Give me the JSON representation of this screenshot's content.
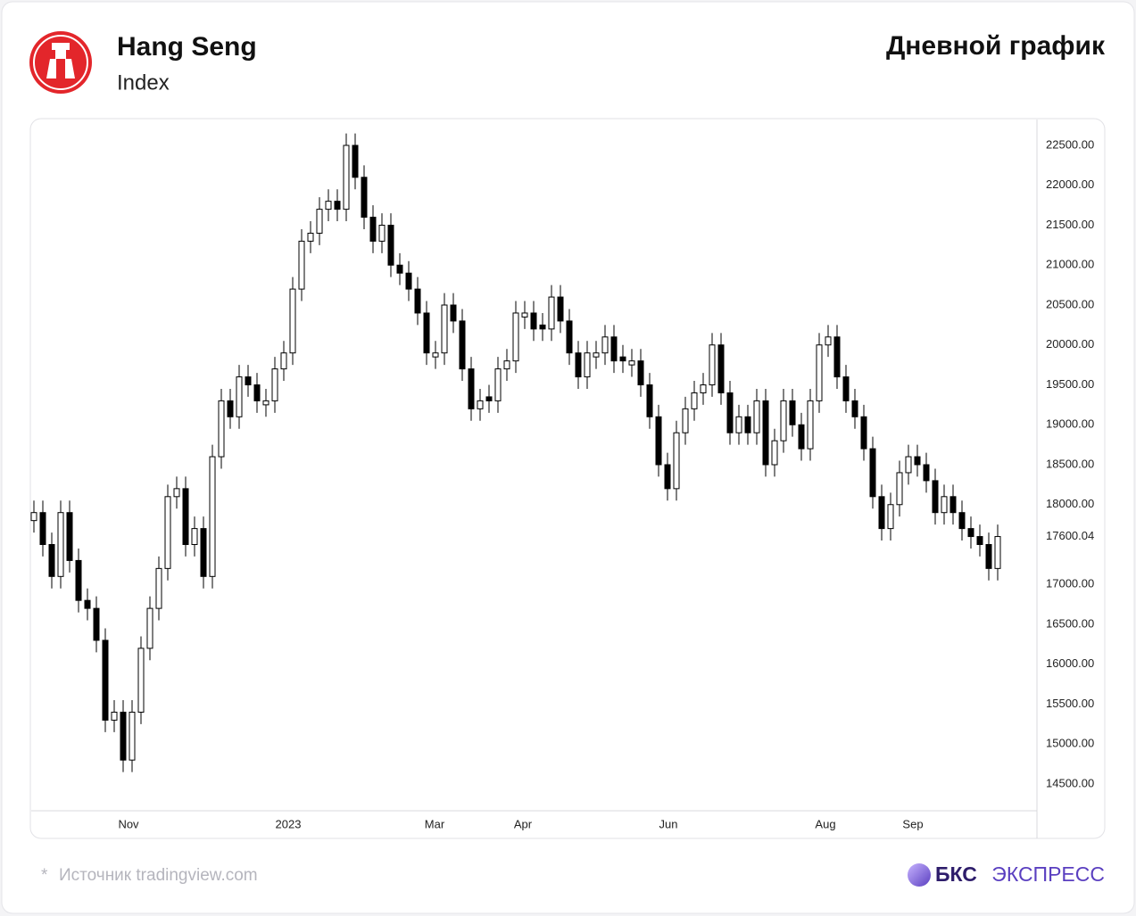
{
  "chart_data": {
    "type": "candlestick",
    "title": "Hang Seng",
    "subtitle": "Index",
    "open": [
      17800,
      17900,
      17500,
      17100,
      17900,
      17300,
      16800,
      16700,
      16300,
      15300,
      15400,
      14800,
      15400,
      16200,
      16700,
      17200,
      18100,
      18200,
      17500,
      17700,
      17100,
      18600,
      19300,
      19100,
      19600,
      19500,
      19250,
      19300,
      19700,
      19900,
      20700,
      21300,
      21400,
      21700,
      21800,
      21700,
      22500,
      22100,
      21600,
      21300,
      21500,
      21000,
      20900,
      20700,
      20400,
      19850,
      19900,
      20500,
      20300,
      19700,
      19200,
      19350,
      19300,
      19700,
      19800,
      20350,
      20400,
      20250,
      20200,
      20600,
      20300,
      19900,
      19600,
      19850,
      19900,
      20100,
      19850,
      19750,
      19800,
      19500,
      19100,
      18500,
      18200,
      18900,
      19200,
      19400,
      19500,
      20000,
      19400,
      18900,
      19100,
      18900,
      19300,
      18500,
      18800,
      19300,
      19000,
      18700,
      19300,
      20000,
      20100,
      19600,
      19300,
      19100,
      18700,
      18100,
      17700,
      18000,
      18400,
      18600,
      18500,
      18300,
      17900,
      18100,
      17900,
      17700,
      17600,
      17500,
      17200
    ],
    "high": [
      18050,
      18050,
      17650,
      18050,
      18050,
      17450,
      16950,
      16850,
      16450,
      15550,
      15550,
      15550,
      16350,
      16850,
      17350,
      18250,
      18350,
      18350,
      17850,
      17850,
      18750,
      19450,
      19450,
      19750,
      19750,
      19650,
      19450,
      19850,
      20050,
      20850,
      21450,
      21550,
      21850,
      21950,
      21950,
      22650,
      22650,
      22250,
      21750,
      21650,
      21650,
      21150,
      21050,
      20850,
      20550,
      20050,
      20650,
      20650,
      20450,
      19850,
      19450,
      19500,
      19850,
      19950,
      20550,
      20550,
      20550,
      20400,
      20750,
      20750,
      20450,
      20050,
      20050,
      20050,
      20250,
      20250,
      20000,
      19950,
      19950,
      19650,
      19250,
      18650,
      19050,
      19350,
      19550,
      19650,
      20150,
      20150,
      19550,
      19250,
      19250,
      19450,
      19450,
      18950,
      19450,
      19450,
      19150,
      19450,
      20150,
      20250,
      20250,
      19750,
      19450,
      19250,
      18850,
      18250,
      18150,
      18550,
      18750,
      18750,
      18650,
      18450,
      18250,
      18250,
      18050,
      17850,
      17750,
      17650,
      17750
    ],
    "low": [
      17650,
      17350,
      16950,
      16950,
      17150,
      16650,
      16550,
      16150,
      15150,
      15150,
      14650,
      14650,
      15250,
      16050,
      16550,
      17050,
      17950,
      17350,
      17350,
      16950,
      16950,
      18450,
      18950,
      18950,
      19350,
      19150,
      19100,
      19150,
      19550,
      19750,
      20550,
      21150,
      21250,
      21550,
      21550,
      21550,
      21950,
      21450,
      21150,
      21150,
      20850,
      20750,
      20550,
      20250,
      19750,
      19700,
      19750,
      20150,
      19550,
      19050,
      19050,
      19150,
      19150,
      19550,
      19650,
      20200,
      20050,
      20050,
      20050,
      20150,
      19750,
      19450,
      19450,
      19700,
      19750,
      19650,
      19650,
      19600,
      19350,
      18950,
      18350,
      18050,
      18050,
      18750,
      19050,
      19250,
      19350,
      19250,
      18750,
      18750,
      18750,
      18750,
      18350,
      18350,
      18650,
      18850,
      18550,
      18550,
      19150,
      19850,
      19450,
      19150,
      18950,
      18550,
      17950,
      17550,
      17550,
      17850,
      18250,
      18350,
      18150,
      17750,
      17750,
      17750,
      17550,
      17450,
      17350,
      17050,
      17050
    ],
    "close": [
      17900,
      17500,
      17100,
      17900,
      17300,
      16800,
      16700,
      16300,
      15300,
      15400,
      14800,
      15400,
      16200,
      16700,
      17200,
      18100,
      18200,
      17500,
      17700,
      17100,
      18600,
      19300,
      19100,
      19600,
      19500,
      19300,
      19300,
      19700,
      19900,
      20700,
      21300,
      21400,
      21700,
      21800,
      21700,
      22500,
      22100,
      21600,
      21300,
      21500,
      21000,
      20900,
      20700,
      20400,
      19900,
      19900,
      20500,
      20300,
      19700,
      19200,
      19300,
      19300,
      19700,
      19800,
      20400,
      20400,
      20200,
      20200,
      20600,
      20300,
      19900,
      19600,
      19900,
      19900,
      20100,
      19800,
      19800,
      19800,
      19500,
      19100,
      18500,
      18200,
      18900,
      19200,
      19400,
      19500,
      20000,
      19400,
      18900,
      19100,
      18900,
      19300,
      18500,
      18800,
      19300,
      19000,
      18700,
      19300,
      20000,
      20100,
      19600,
      19300,
      19100,
      18700,
      18100,
      17700,
      18000,
      18400,
      18600,
      18500,
      18300,
      17900,
      18100,
      17900,
      17700,
      17600,
      17500,
      17200,
      17600.04
    ],
    "up_color": "#ffffff",
    "down_color": "#000000",
    "outline_color": "#000000",
    "xlim": [
      -0.3,
      112.4
    ],
    "xticks": [
      {
        "value": 10.6,
        "label": "Nov"
      },
      {
        "value": 28.5,
        "label": "2023"
      },
      {
        "value": 44.9,
        "label": "Mar"
      },
      {
        "value": 54.8,
        "label": "Apr"
      },
      {
        "value": 71.1,
        "label": "Jun"
      },
      {
        "value": 88.7,
        "label": "Aug"
      },
      {
        "value": 98.5,
        "label": "Sep"
      }
    ],
    "ylim": [
      14165,
      22824
    ],
    "yticks": [
      {
        "value": 14500,
        "label": "14500.00"
      },
      {
        "value": 15000,
        "label": "15000.00"
      },
      {
        "value": 15500,
        "label": "15500.00"
      },
      {
        "value": 16000,
        "label": "16000.00"
      },
      {
        "value": 16500,
        "label": "16500.00"
      },
      {
        "value": 17000,
        "label": "17000.00"
      },
      {
        "value": 17600.04,
        "label": "17600.04"
      },
      {
        "value": 18000,
        "label": "18000.00"
      },
      {
        "value": 18500,
        "label": "18500.00"
      },
      {
        "value": 19000,
        "label": "19000.00"
      },
      {
        "value": 19500,
        "label": "19500.00"
      },
      {
        "value": 20000,
        "label": "20000.00"
      },
      {
        "value": 20500,
        "label": "20500.00"
      },
      {
        "value": 21000,
        "label": "21000.00"
      },
      {
        "value": 21500,
        "label": "21500.00"
      },
      {
        "value": 22000,
        "label": "22000.00"
      },
      {
        "value": 22500,
        "label": "22500.00"
      }
    ],
    "grid": false
  },
  "chart_label": "Дневной график",
  "footer": {
    "mark": "*",
    "source": "Источник tradingview.com",
    "brand": "БКС",
    "brand_suffix": "ЭКСПРЕСС"
  }
}
